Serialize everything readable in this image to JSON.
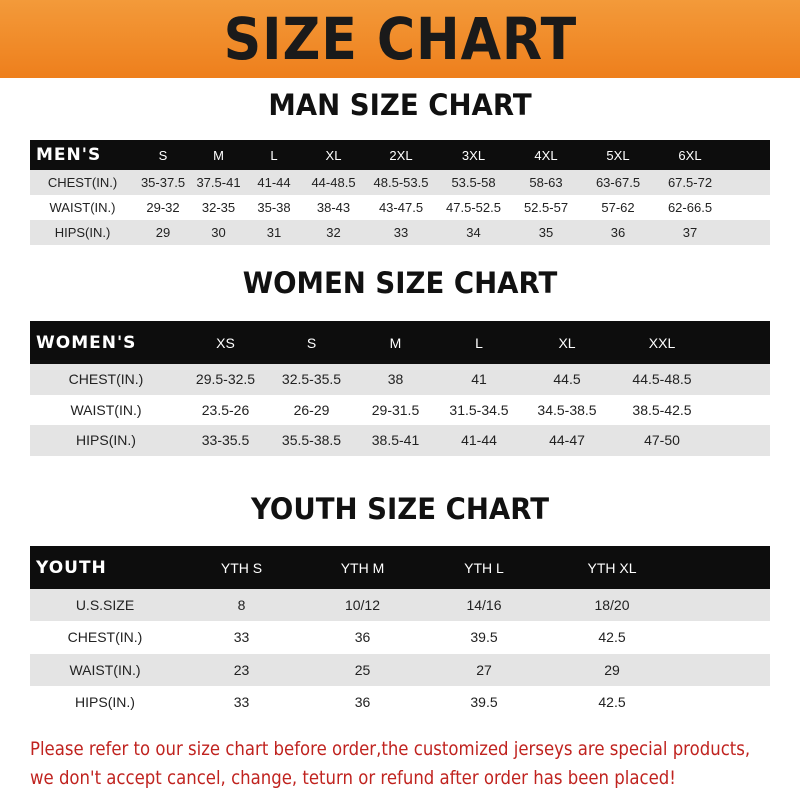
{
  "banner": {
    "title": "SIZE CHART",
    "color": "#ee7f1c"
  },
  "men": {
    "title": "MAN SIZE CHART",
    "header": "MEN'S",
    "sizes": [
      "S",
      "M",
      "L",
      "XL",
      "2XL",
      "3XL",
      "4XL",
      "5XL",
      "6XL"
    ],
    "rows": [
      {
        "label": "CHEST(IN.)",
        "values": [
          "35-37.5",
          "37.5-41",
          "41-44",
          "44-48.5",
          "48.5-53.5",
          "53.5-58",
          "58-63",
          "63-67.5",
          "67.5-72"
        ]
      },
      {
        "label": "WAIST(IN.)",
        "values": [
          "29-32",
          "32-35",
          "35-38",
          "38-43",
          "43-47.5",
          "47.5-52.5",
          "52.5-57",
          "57-62",
          "62-66.5"
        ]
      },
      {
        "label": "HIPS(IN.)",
        "values": [
          "29",
          "30",
          "31",
          "32",
          "33",
          "34",
          "35",
          "36",
          "37"
        ]
      }
    ]
  },
  "women": {
    "title": "WOMEN SIZE CHART",
    "header": "WOMEN'S",
    "sizes": [
      "XS",
      "S",
      "M",
      "L",
      "XL",
      "XXL"
    ],
    "rows": [
      {
        "label": "CHEST(IN.)",
        "values": [
          "29.5-32.5",
          "32.5-35.5",
          "38",
          "41",
          "44.5",
          "44.5-48.5"
        ]
      },
      {
        "label": "WAIST(IN.)",
        "values": [
          "23.5-26",
          "26-29",
          "29-31.5",
          "31.5-34.5",
          "34.5-38.5",
          "38.5-42.5"
        ]
      },
      {
        "label": "HIPS(IN.)",
        "values": [
          "33-35.5",
          "35.5-38.5",
          "38.5-41",
          "41-44",
          "44-47",
          "47-50"
        ]
      }
    ]
  },
  "youth": {
    "title": "YOUTH SIZE CHART",
    "header": "YOUTH",
    "sizes": [
      "YTH S",
      "YTH M",
      "YTH L",
      "YTH XL"
    ],
    "rows": [
      {
        "label": "U.S.SIZE",
        "values": [
          "8",
          "10/12",
          "14/16",
          "18/20"
        ]
      },
      {
        "label": "CHEST(IN.)",
        "values": [
          "33",
          "36",
          "39.5",
          "42.5"
        ]
      },
      {
        "label": "WAIST(IN.)",
        "values": [
          "23",
          "25",
          "27",
          "29"
        ]
      },
      {
        "label": "HIPS(IN.)",
        "values": [
          "33",
          "36",
          "39.5",
          "42.5"
        ]
      }
    ]
  },
  "note": {
    "line1": "Please refer to our size chart before order,the customized jerseys are special products,",
    "line2": "we don't accept cancel, change, teturn or refund after order has been placed!",
    "color": "#c0231f"
  }
}
